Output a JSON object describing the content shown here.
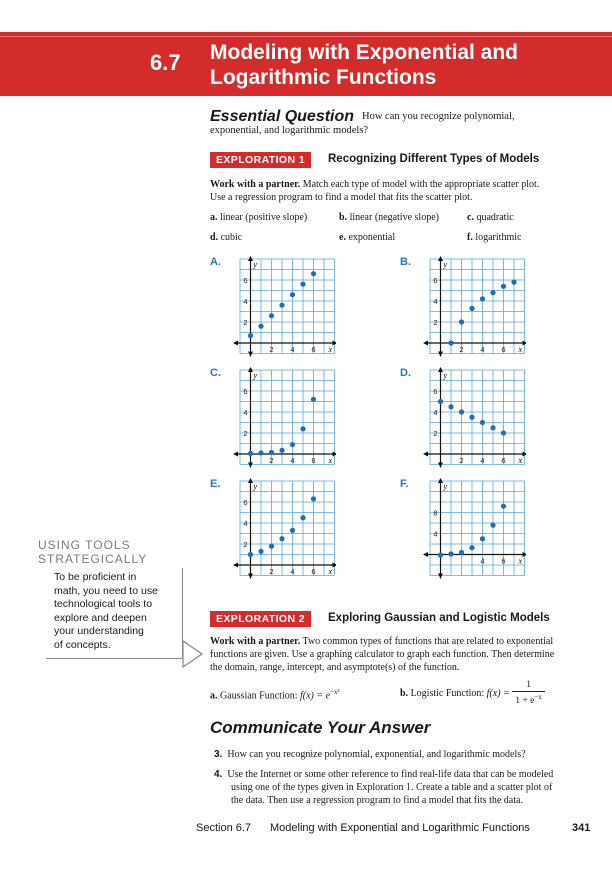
{
  "header": {
    "section_number": "6.7",
    "title_line1": "Modeling with Exponential and",
    "title_line2": "Logarithmic Functions"
  },
  "essential": {
    "heading": "Essential Question",
    "text_line1": "How can you recognize polynomial,",
    "text_line2": "exponential, and logarithmic models?"
  },
  "exploration1": {
    "tag": "EXPLORATION 1",
    "title": "Recognizing Different Types of Models",
    "lead": "Work with a partner.",
    "text_line1": "Match each type of model with the appropriate scatter plot.",
    "text_line2": "Use a regression program to find a model that fits the scatter plot.",
    "options": [
      {
        "letter": "a.",
        "label": "linear (positive slope)"
      },
      {
        "letter": "b.",
        "label": "linear (negative slope)"
      },
      {
        "letter": "c.",
        "label": "quadratic"
      },
      {
        "letter": "d.",
        "label": "cubic"
      },
      {
        "letter": "e.",
        "label": "exponential"
      },
      {
        "letter": "f.",
        "label": "logarithmic"
      }
    ]
  },
  "axis": {
    "x": "x",
    "y": "y"
  },
  "graphs": [
    {
      "label": "A.",
      "yticks": [
        "2",
        "4",
        "6"
      ],
      "xticks": [
        "2",
        "4",
        "6"
      ],
      "points": [
        [
          0,
          0.7
        ],
        [
          1,
          1.6
        ],
        [
          2,
          2.6
        ],
        [
          3,
          3.6
        ],
        [
          4,
          4.6
        ],
        [
          5,
          5.6
        ],
        [
          6,
          6.6
        ]
      ]
    },
    {
      "label": "B.",
      "yticks": [
        "2",
        "4",
        "6"
      ],
      "xticks": [
        "2",
        "4",
        "6"
      ],
      "points": [
        [
          1,
          0
        ],
        [
          2,
          2
        ],
        [
          3,
          3.3
        ],
        [
          4,
          4.2
        ],
        [
          5,
          4.8
        ],
        [
          6,
          5.4
        ],
        [
          7,
          5.8
        ]
      ]
    },
    {
      "label": "C.",
      "yticks": [
        "2",
        "4",
        "6"
      ],
      "xticks": [
        "2",
        "4",
        "6"
      ],
      "points": [
        [
          0,
          0.05
        ],
        [
          1,
          0.1
        ],
        [
          2,
          0.15
        ],
        [
          3,
          0.35
        ],
        [
          4,
          0.9
        ],
        [
          5,
          2.4
        ],
        [
          6,
          5.2
        ]
      ]
    },
    {
      "label": "D.",
      "yticks": [
        "2",
        "4",
        "6"
      ],
      "xticks": [
        "2",
        "4",
        "6"
      ],
      "points": [
        [
          0,
          5
        ],
        [
          1,
          4.5
        ],
        [
          2,
          4
        ],
        [
          3,
          3.5
        ],
        [
          4,
          3
        ],
        [
          5,
          2.5
        ],
        [
          6,
          2
        ]
      ]
    },
    {
      "label": "E.",
      "yticks": [
        "2",
        "4",
        "6"
      ],
      "xticks": [
        "2",
        "4",
        "6"
      ],
      "points": [
        [
          0,
          1
        ],
        [
          1,
          1.3
        ],
        [
          2,
          1.8
        ],
        [
          3,
          2.5
        ],
        [
          4,
          3.3
        ],
        [
          5,
          4.5
        ],
        [
          6,
          6.3
        ]
      ]
    },
    {
      "label": "F.",
      "yticks": [
        "4",
        "8"
      ],
      "xticks": [
        "4",
        "6"
      ],
      "points": [
        [
          0,
          -0.1
        ],
        [
          1,
          0.1
        ],
        [
          2,
          0.4
        ],
        [
          3,
          1.3
        ],
        [
          4,
          3
        ],
        [
          5,
          5.6
        ],
        [
          6,
          9.2
        ]
      ]
    }
  ],
  "tools": {
    "heading_line1": "USING TOOLS",
    "heading_line2": "STRATEGICALLY",
    "lines": [
      "To be proficient in",
      "math, you need to use",
      "technological tools to",
      "explore and deepen",
      "your understanding",
      "of concepts."
    ]
  },
  "exploration2": {
    "tag": "EXPLORATION 2",
    "title": "Exploring Gaussian and Logistic Models",
    "lead": "Work with a partner.",
    "text_line1": "Two common types of functions that are related to exponential",
    "text_line2": "functions are given. Use a graphing calculator to graph each function. Then determine",
    "text_line3": "the domain, range, intercept, and asymptote(s) of the function.",
    "a_letter": "a.",
    "a_label": "Gaussian Function:",
    "b_letter": "b.",
    "b_label": "Logistic Function:",
    "f_of_x": "f(x) =",
    "e_base": "e",
    "gauss_exp": "−x²",
    "logistic_num": "1",
    "logistic_den": "1 + e",
    "logistic_exp": "−x"
  },
  "communicate": {
    "heading": "Communicate Your Answer",
    "q3_num": "3.",
    "q3_text": "How can you recognize polynomial, exponential, and logarithmic models?",
    "q4_num": "4.",
    "q4_line1": "Use the Internet or some other reference to find real-life data that can be modeled",
    "q4_line2": "using one of the types given in Exploration 1. Create a table and a scatter plot of",
    "q4_line3": "the data. Then use a regression program to find a model that fits the data."
  },
  "footer": {
    "section": "Section 6.7",
    "title": "Modeling with Exponential and Logarithmic Functions",
    "page": "341"
  },
  "colors": {
    "red": "#d42b2b",
    "blue": "#2e78b5",
    "grid": "#5aa9d6"
  }
}
